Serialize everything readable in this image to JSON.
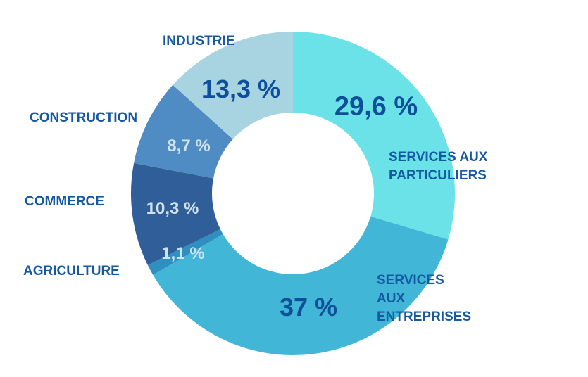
{
  "chart_data": {
    "type": "pie",
    "variant": "donut",
    "title": "",
    "slices": [
      {
        "label": "SERVICES AUX PARTICULIERS",
        "lines": [
          "SERVICES AUX",
          "PARTICULIERS"
        ],
        "value": 29.6,
        "value_label": "29,6 %",
        "color": "#6be2e8",
        "text_color": "#0e4f9a"
      },
      {
        "label": "SERVICES AUX ENTREPRISES",
        "lines": [
          "SERVICES",
          "AUX",
          "ENTREPRISES"
        ],
        "value": 37,
        "value_label": "37 %",
        "color": "#41b6d6",
        "text_color": "#0e4f9a"
      },
      {
        "label": "AGRICULTURE",
        "lines": [
          "AGRICULTURE"
        ],
        "value": 1.1,
        "value_label": "1,1 %",
        "color": "#2f8fc0",
        "text_color": "#cfe3ee"
      },
      {
        "label": "COMMERCE",
        "lines": [
          "COMMERCE"
        ],
        "value": 10.3,
        "value_label": "10,3 %",
        "color": "#2f5e98",
        "text_color": "#cfe3ee"
      },
      {
        "label": "CONSTRUCTION",
        "lines": [
          "CONSTRUCTION"
        ],
        "value": 8.7,
        "value_label": "8,7 %",
        "color": "#4f8cc4",
        "text_color": "#cfe3ee"
      },
      {
        "label": "INDUSTRIE",
        "lines": [
          "INDUSTRIE"
        ],
        "value": 13.3,
        "value_label": "13,3 %",
        "color": "#a8d4e2",
        "text_color": "#0e4f9a"
      }
    ],
    "start": "12 o'clock",
    "direction": "clockwise"
  }
}
